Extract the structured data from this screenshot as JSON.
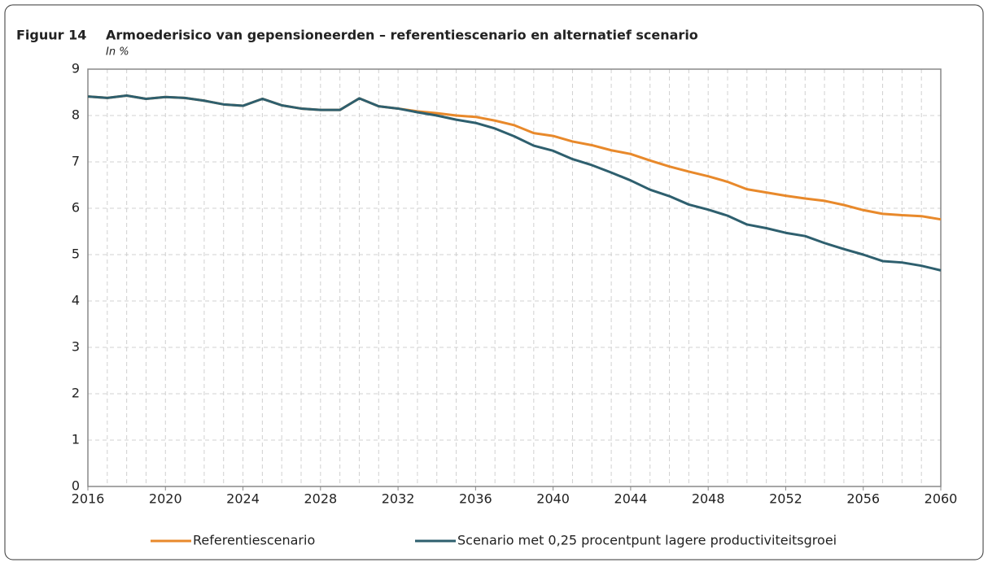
{
  "chart_data": {
    "type": "line",
    "figure_label": "Figuur 14",
    "title": "Armoederisico van gepensioneerden – referentiescenario en alternatief scenario",
    "subtitle": "In %",
    "x": [
      2016,
      2017,
      2018,
      2019,
      2020,
      2021,
      2022,
      2023,
      2024,
      2025,
      2026,
      2027,
      2028,
      2029,
      2030,
      2031,
      2032,
      2033,
      2034,
      2035,
      2036,
      2037,
      2038,
      2039,
      2040,
      2041,
      2042,
      2043,
      2044,
      2045,
      2046,
      2047,
      2048,
      2049,
      2050,
      2051,
      2052,
      2053,
      2054,
      2055,
      2056,
      2057,
      2058,
      2059,
      2060
    ],
    "series": [
      {
        "name": "Referentiescenario",
        "color": "#e8892b",
        "values": [
          8.41,
          8.38,
          8.43,
          8.36,
          8.4,
          8.38,
          8.32,
          8.24,
          8.21,
          8.36,
          8.22,
          8.15,
          8.12,
          8.12,
          8.37,
          8.2,
          8.15,
          8.09,
          8.05,
          8.0,
          7.97,
          7.89,
          7.79,
          7.62,
          7.56,
          7.44,
          7.36,
          7.25,
          7.17,
          7.03,
          6.9,
          6.79,
          6.69,
          6.57,
          6.41,
          6.34,
          6.27,
          6.21,
          6.16,
          6.07,
          5.96,
          5.88,
          5.85,
          5.83,
          5.76
        ]
      },
      {
        "name": "Scenario met 0,25 procentpunt lagere productiviteitsgroei",
        "color": "#2e5f6e",
        "values": [
          8.41,
          8.38,
          8.43,
          8.36,
          8.4,
          8.38,
          8.32,
          8.24,
          8.21,
          8.36,
          8.22,
          8.15,
          8.12,
          8.12,
          8.37,
          8.2,
          8.15,
          8.07,
          8.0,
          7.91,
          7.84,
          7.72,
          7.55,
          7.35,
          7.24,
          7.06,
          6.93,
          6.77,
          6.6,
          6.4,
          6.26,
          6.08,
          5.97,
          5.84,
          5.65,
          5.57,
          5.47,
          5.4,
          5.25,
          5.12,
          5.0,
          4.86,
          4.83,
          4.76,
          4.66
        ]
      }
    ],
    "xlim": [
      2016,
      2060
    ],
    "xticks": [
      2016,
      2020,
      2024,
      2028,
      2032,
      2036,
      2040,
      2044,
      2048,
      2052,
      2056,
      2060
    ],
    "ylim": [
      0,
      9
    ],
    "yticks": [
      0,
      1,
      2,
      3,
      4,
      5,
      6,
      7,
      8,
      9
    ],
    "grid": true,
    "legend": "bottom"
  }
}
